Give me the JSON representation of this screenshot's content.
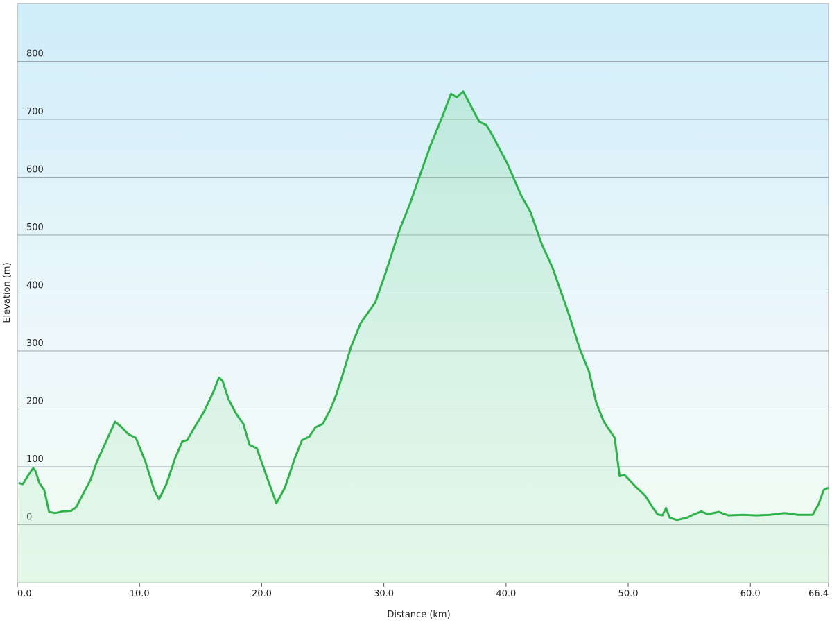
{
  "chart_data": {
    "type": "area-line",
    "x_label": "Distance  (km)",
    "y_label": "Elevation (m)",
    "color": "#2db34a",
    "x": [
      0.1,
      0.45,
      0.85,
      1.3,
      1.5,
      1.8,
      2.2,
      2.6,
      3.1,
      3.7,
      4.4,
      4.8,
      5.4,
      6.0,
      6.5,
      7.4,
      8.0,
      8.5,
      9.1,
      9.7,
      10.5,
      11.2,
      11.6,
      12.2,
      12.9,
      13.5,
      13.9,
      14.5,
      15.3,
      16.1,
      16.5,
      16.8,
      17.3,
      17.9,
      18.5,
      19.0,
      19.6,
      20.5,
      21.2,
      21.9,
      22.7,
      23.3,
      23.9,
      24.4,
      25.0,
      25.6,
      26.1,
      26.7,
      27.3,
      28.1,
      29.3,
      30.1,
      31.3,
      32.1,
      33.0,
      33.8,
      34.7,
      35.5,
      35.97,
      36.5,
      37.8,
      38.4,
      38.9,
      40.1,
      41.2,
      42.0,
      42.9,
      43.8,
      44.5,
      45.2,
      46.0,
      46.8,
      47.4,
      48.0,
      48.9,
      49.3,
      49.7,
      50.6,
      51.4,
      52.0,
      52.4,
      52.8,
      53.1,
      53.4,
      54.0,
      54.8,
      55.4,
      56.0,
      56.5,
      57.4,
      58.2,
      59.4,
      60.5,
      61.6,
      62.8,
      63.9,
      65.1,
      65.6,
      66.0,
      66.4
    ],
    "values": [
      72,
      70,
      84,
      98,
      92,
      72,
      60,
      22,
      20,
      23,
      24,
      30,
      54,
      78,
      108,
      150,
      178,
      169,
      156,
      150,
      108,
      60,
      44,
      70,
      114,
      144,
      146,
      168,
      196,
      232,
      254,
      248,
      216,
      192,
      174,
      138,
      132,
      78,
      37,
      64,
      114,
      146,
      152,
      168,
      174,
      198,
      224,
      264,
      306,
      348,
      384,
      432,
      510,
      552,
      606,
      654,
      700,
      744,
      738,
      748,
      696,
      690,
      672,
      624,
      570,
      540,
      486,
      444,
      402,
      360,
      306,
      264,
      210,
      178,
      150,
      84,
      86,
      66,
      50,
      30,
      18,
      16,
      29,
      12,
      8,
      12,
      18,
      23,
      18,
      22,
      16,
      17,
      16,
      17,
      20,
      17,
      17,
      36,
      60,
      64
    ],
    "xlim": [
      0,
      66.4
    ],
    "ylim": [
      -100,
      900
    ],
    "xticks": [
      {
        "value": 0,
        "label": "0.0"
      },
      {
        "value": 10,
        "label": "10.0"
      },
      {
        "value": 20,
        "label": "20.0"
      },
      {
        "value": 30,
        "label": "30.0"
      },
      {
        "value": 40,
        "label": "40.0"
      },
      {
        "value": 50,
        "label": "50.0"
      },
      {
        "value": 60,
        "label": "60.0"
      },
      66.4
    ],
    "yticks": [
      0,
      100,
      200,
      300,
      400,
      500,
      600,
      700,
      800
    ],
    "grid": true
  }
}
